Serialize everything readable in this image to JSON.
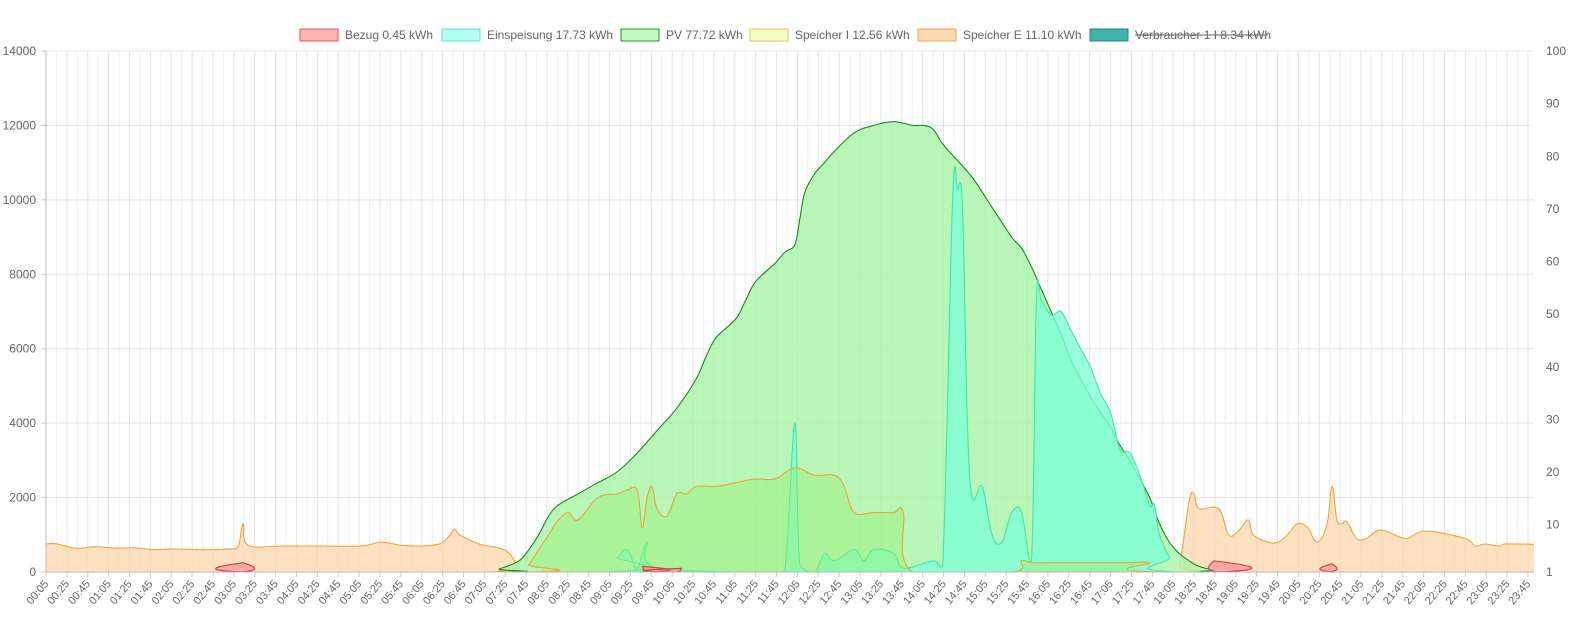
{
  "chart_data": {
    "type": "area",
    "title": "",
    "xlabel": "",
    "ylabel": "",
    "ylim": [
      0,
      14000
    ],
    "y_ticks": [
      0,
      2000,
      4000,
      6000,
      8000,
      10000,
      12000,
      14000
    ],
    "y2_ticks": [
      1,
      10,
      20,
      30,
      40,
      50,
      60,
      70,
      80,
      90,
      100
    ],
    "y2lim": [
      1,
      100
    ],
    "grid": true,
    "legend_position": "top",
    "x_labels": [
      "00:05",
      "00:25",
      "00:45",
      "01:05",
      "01:25",
      "01:45",
      "02:05",
      "02:25",
      "02:45",
      "03:05",
      "03:25",
      "03:45",
      "04:05",
      "04:25",
      "04:45",
      "05:05",
      "05:25",
      "05:45",
      "06:05",
      "06:25",
      "06:45",
      "07:05",
      "07:25",
      "07:45",
      "08:05",
      "08:25",
      "08:45",
      "09:05",
      "09:25",
      "09:45",
      "10:05",
      "10:25",
      "10:45",
      "11:05",
      "11:25",
      "11:45",
      "12:05",
      "12:25",
      "12:45",
      "13:05",
      "13:25",
      "13:45",
      "14:05",
      "14:25",
      "14:45",
      "15:05",
      "15:25",
      "15:45",
      "16:05",
      "16:25",
      "16:45",
      "17:05",
      "17:25",
      "17:45",
      "18:05",
      "18:25",
      "18:45",
      "19:05",
      "19:25",
      "19:45",
      "20:05",
      "20:25",
      "20:45",
      "21:05",
      "21:25",
      "21:45",
      "22:05",
      "22:25",
      "22:45",
      "23:05",
      "23:25",
      "23:45"
    ],
    "series": [
      {
        "name": "Speicher E 11.10 kWh",
        "fill": "#fdd9b0",
        "stroke": "#f6a33c",
        "hidden": false,
        "points": [
          [
            0,
            750
          ],
          [
            10,
            760
          ],
          [
            30,
            640
          ],
          [
            50,
            680
          ],
          [
            70,
            640
          ],
          [
            90,
            650
          ],
          [
            110,
            600
          ],
          [
            130,
            620
          ],
          [
            160,
            600
          ],
          [
            185,
            620
          ],
          [
            195,
            700
          ],
          [
            200,
            1300
          ],
          [
            205,
            720
          ],
          [
            240,
            700
          ],
          [
            280,
            700
          ],
          [
            320,
            700
          ],
          [
            340,
            800
          ],
          [
            360,
            720
          ],
          [
            380,
            700
          ],
          [
            400,
            760
          ],
          [
            410,
            1000
          ],
          [
            415,
            1150
          ],
          [
            420,
            1000
          ],
          [
            440,
            750
          ],
          [
            460,
            640
          ],
          [
            470,
            500
          ],
          [
            480,
            120
          ],
          [
            485,
            0
          ],
          [
            800,
            0
          ],
          [
            1140,
            0
          ],
          [
            1150,
            200
          ],
          [
            1160,
            1900
          ],
          [
            1165,
            2100
          ],
          [
            1170,
            1700
          ],
          [
            1190,
            1700
          ],
          [
            1200,
            1000
          ],
          [
            1210,
            1100
          ],
          [
            1220,
            1400
          ],
          [
            1225,
            1000
          ],
          [
            1240,
            800
          ],
          [
            1250,
            800
          ],
          [
            1260,
            1000
          ],
          [
            1270,
            1300
          ],
          [
            1280,
            1200
          ],
          [
            1290,
            800
          ],
          [
            1300,
            1300
          ],
          [
            1305,
            2300
          ],
          [
            1310,
            1400
          ],
          [
            1315,
            1300
          ],
          [
            1320,
            1350
          ],
          [
            1330,
            900
          ],
          [
            1340,
            900
          ],
          [
            1350,
            1100
          ],
          [
            1360,
            1100
          ],
          [
            1380,
            900
          ],
          [
            1400,
            1100
          ],
          [
            1440,
            900
          ],
          [
            1450,
            700
          ],
          [
            1460,
            750
          ],
          [
            1475,
            700
          ],
          [
            1480,
            750
          ],
          [
            1500,
            750
          ],
          [
            1510,
            740
          ]
        ]
      },
      {
        "name": "PV 77.72 kWh",
        "fill": "#a8f5a8",
        "stroke": "#1a8a1a",
        "hidden": false,
        "points": [
          [
            0,
            0
          ],
          [
            450,
            0
          ],
          [
            460,
            80
          ],
          [
            480,
            300
          ],
          [
            490,
            600
          ],
          [
            500,
            1000
          ],
          [
            510,
            1500
          ],
          [
            520,
            1800
          ],
          [
            540,
            2100
          ],
          [
            560,
            2400
          ],
          [
            580,
            2700
          ],
          [
            600,
            3200
          ],
          [
            620,
            3800
          ],
          [
            640,
            4400
          ],
          [
            660,
            5200
          ],
          [
            670,
            5800
          ],
          [
            680,
            6300
          ],
          [
            700,
            6800
          ],
          [
            710,
            7300
          ],
          [
            720,
            7800
          ],
          [
            740,
            8300
          ],
          [
            750,
            8600
          ],
          [
            760,
            8800
          ],
          [
            765,
            9500
          ],
          [
            770,
            10200
          ],
          [
            780,
            10700
          ],
          [
            790,
            11000
          ],
          [
            800,
            11300
          ],
          [
            820,
            11800
          ],
          [
            840,
            12000
          ],
          [
            860,
            12100
          ],
          [
            880,
            12000
          ],
          [
            890,
            12000
          ],
          [
            900,
            11900
          ],
          [
            910,
            11500
          ],
          [
            920,
            11200
          ],
          [
            940,
            10600
          ],
          [
            960,
            9800
          ],
          [
            980,
            9000
          ],
          [
            990,
            8700
          ],
          [
            1000,
            8200
          ],
          [
            1010,
            7600
          ],
          [
            1020,
            7000
          ],
          [
            1030,
            6400
          ],
          [
            1040,
            5700
          ],
          [
            1050,
            5200
          ],
          [
            1060,
            4700
          ],
          [
            1070,
            4300
          ],
          [
            1080,
            3900
          ],
          [
            1090,
            3400
          ],
          [
            1100,
            3000
          ],
          [
            1110,
            2500
          ],
          [
            1120,
            2000
          ],
          [
            1130,
            1300
          ],
          [
            1140,
            800
          ],
          [
            1150,
            500
          ],
          [
            1160,
            300
          ],
          [
            1170,
            150
          ],
          [
            1185,
            50
          ],
          [
            1200,
            0
          ],
          [
            1510,
            0
          ]
        ]
      },
      {
        "name": "Einspeisung 17.73 kWh",
        "fill": "#80ffd6",
        "stroke": "#3ee6a8",
        "hidden": false,
        "points": [
          [
            0,
            0
          ],
          [
            560,
            0
          ],
          [
            580,
            400
          ],
          [
            590,
            600
          ],
          [
            600,
            100
          ],
          [
            610,
            800
          ],
          [
            620,
            100
          ],
          [
            740,
            0
          ],
          [
            750,
            100
          ],
          [
            760,
            4000
          ],
          [
            765,
            200
          ],
          [
            780,
            0
          ],
          [
            790,
            500
          ],
          [
            800,
            300
          ],
          [
            820,
            600
          ],
          [
            830,
            300
          ],
          [
            840,
            600
          ],
          [
            860,
            500
          ],
          [
            870,
            100
          ],
          [
            900,
            300
          ],
          [
            910,
            200
          ],
          [
            920,
            10000
          ],
          [
            925,
            10300
          ],
          [
            930,
            9800
          ],
          [
            935,
            4000
          ],
          [
            940,
            2000
          ],
          [
            950,
            2300
          ],
          [
            960,
            1000
          ],
          [
            970,
            800
          ],
          [
            980,
            1600
          ],
          [
            990,
            1600
          ],
          [
            1000,
            300
          ],
          [
            1005,
            7300
          ],
          [
            1010,
            7300
          ],
          [
            1020,
            6900
          ],
          [
            1030,
            7000
          ],
          [
            1040,
            6500
          ],
          [
            1050,
            6000
          ],
          [
            1060,
            5500
          ],
          [
            1070,
            4800
          ],
          [
            1080,
            4300
          ],
          [
            1090,
            3300
          ],
          [
            1100,
            3200
          ],
          [
            1110,
            2600
          ],
          [
            1120,
            1800
          ],
          [
            1125,
            1800
          ],
          [
            1130,
            1000
          ],
          [
            1140,
            400
          ],
          [
            1150,
            0
          ],
          [
            1510,
            0
          ]
        ]
      },
      {
        "name": "Speicher I 12.56 kWh",
        "fill": "rgba(150,240,110,0.55)",
        "stroke": "#f2a03a",
        "hidden": false,
        "points": [
          [
            0,
            0
          ],
          [
            480,
            0
          ],
          [
            490,
            200
          ],
          [
            500,
            600
          ],
          [
            510,
            1000
          ],
          [
            520,
            1400
          ],
          [
            530,
            1600
          ],
          [
            540,
            1400
          ],
          [
            560,
            2000
          ],
          [
            580,
            2100
          ],
          [
            590,
            2200
          ],
          [
            600,
            2200
          ],
          [
            605,
            1200
          ],
          [
            610,
            2000
          ],
          [
            615,
            2300
          ],
          [
            620,
            1700
          ],
          [
            630,
            1500
          ],
          [
            640,
            2100
          ],
          [
            650,
            2100
          ],
          [
            660,
            2300
          ],
          [
            680,
            2300
          ],
          [
            700,
            2400
          ],
          [
            720,
            2500
          ],
          [
            740,
            2500
          ],
          [
            760,
            2800
          ],
          [
            780,
            2600
          ],
          [
            800,
            2600
          ],
          [
            810,
            2300
          ],
          [
            820,
            1600
          ],
          [
            840,
            1600
          ],
          [
            860,
            1600
          ],
          [
            870,
            1600
          ],
          [
            880,
            0
          ],
          [
            980,
            0
          ],
          [
            990,
            300
          ],
          [
            1000,
            250
          ],
          [
            1020,
            250
          ],
          [
            1040,
            250
          ],
          [
            1060,
            250
          ],
          [
            1080,
            250
          ],
          [
            1100,
            250
          ],
          [
            1120,
            250
          ],
          [
            1130,
            0
          ],
          [
            1510,
            0
          ]
        ]
      },
      {
        "name": "Bezug 0.45 kWh",
        "fill": "#ff9999",
        "stroke": "#d23b3b",
        "hidden": false,
        "points": [
          [
            0,
            0
          ],
          [
            195,
            0
          ],
          [
            200,
            250
          ],
          [
            205,
            0
          ],
          [
            600,
            0
          ],
          [
            605,
            150
          ],
          [
            610,
            0
          ],
          [
            640,
            0
          ],
          [
            645,
            100
          ],
          [
            650,
            0
          ],
          [
            1180,
            0
          ],
          [
            1185,
            300
          ],
          [
            1190,
            0
          ],
          [
            1300,
            0
          ],
          [
            1305,
            220
          ],
          [
            1310,
            0
          ],
          [
            1510,
            0
          ]
        ]
      },
      {
        "name": "Verbraucher 1 I 8.34 kWh",
        "fill": "#45b3ad",
        "stroke": "#178a85",
        "hidden": true,
        "points": []
      }
    ]
  }
}
